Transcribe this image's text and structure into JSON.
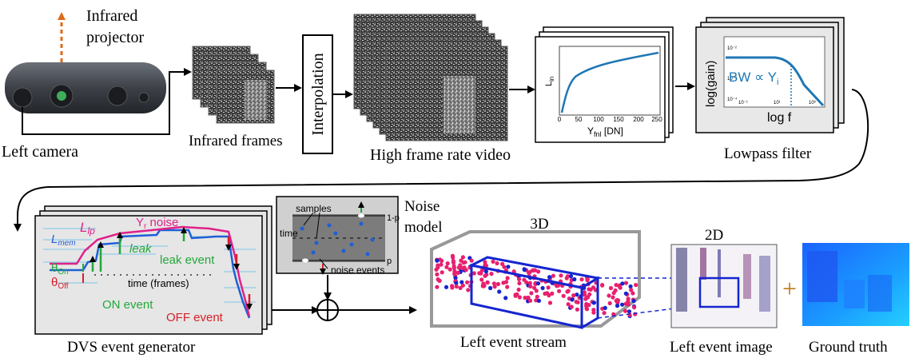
{
  "labels": {
    "infrared_projector": [
      "Infrared",
      "projector"
    ],
    "left_camera": "Left camera",
    "infrared_frames": "Infrared frames",
    "interpolation": "Interpolation",
    "high_frame_rate_video": "High frame rate video",
    "lowpass_filter": "Lowpass filter",
    "dvs_event_generator": "DVS event generator",
    "noise_model": [
      "Noise",
      "model"
    ],
    "left_event_stream": "Left event stream",
    "label_3d": "3D",
    "label_2d": "2D",
    "left_event_image": "Left event image",
    "ground_truth": "Ground truth",
    "plus": "+"
  },
  "mapping_plot": {
    "ylabel": "L",
    "ylabel_sub": "in",
    "xlabel": "Y",
    "xlabel_sub": "fnl",
    "xlabel_unit": " [DN]",
    "xticks": [
      "0",
      "50",
      "100",
      "150",
      "200",
      "250"
    ]
  },
  "lowpass_plot": {
    "ylabel": "log(gain)",
    "xlabel": "log f",
    "annotation": "BW ∝ Y",
    "annotation_sub": "i",
    "yticks": [
      "10⁻²",
      "10⁻³",
      "10⁻⁴"
    ],
    "xticks": [
      "10⁻¹",
      "10¹",
      "10³"
    ]
  },
  "dvs_plot": {
    "lip": "L",
    "lip_sub": "lp",
    "yr_noise": "Y",
    "yr_noise_sub": "r",
    "yr_noise_rest": " noise",
    "lmem": "L",
    "lmem_sub": "mem",
    "leak": "leak",
    "leak_event": "leak event",
    "theta_on": "θ",
    "theta_on_sub": "On",
    "theta_off": "θ",
    "theta_off_sub": "Off",
    "time_axis": "time (frames)",
    "on_event": "ON event",
    "off_event": "OFF event"
  },
  "noise_panel": {
    "samples": "samples",
    "time": "time",
    "one_minus_p": "1-p",
    "p": "p",
    "noise_events": "noise events"
  },
  "colors": {
    "arrow": "#000000",
    "plot_curve": "#1f77b4",
    "magenta": "#e0218a",
    "green": "#22a83a",
    "blue": "#1f5fd6",
    "red": "#d6202a",
    "orange": "#e06a1a",
    "event_blue": "#1525d0",
    "event_pink": "#e8206e"
  }
}
